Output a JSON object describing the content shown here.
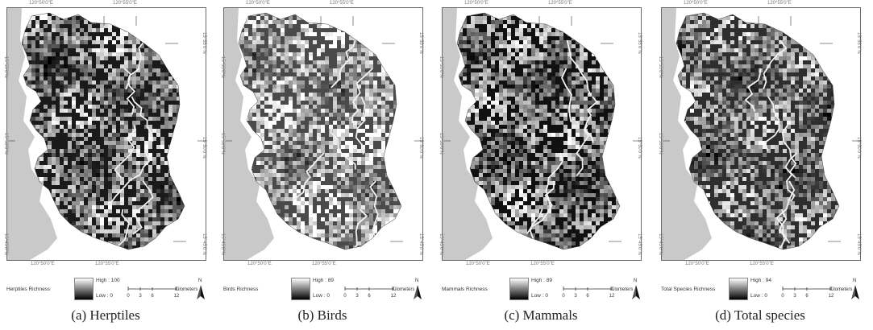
{
  "panels": [
    {
      "caption": "(a) Herptiles",
      "legend_title": "Herptiles Richness",
      "legend_high": "High : 100",
      "legend_low": "Low : 0",
      "variant": 0
    },
    {
      "caption": "(b) Birds",
      "legend_title": "Birds Richness",
      "legend_high": "High : 89",
      "legend_low": "Low : 0",
      "variant": 1
    },
    {
      "caption": "(c) Mammals",
      "legend_title": "Mammals Richness",
      "legend_high": "High : 89",
      "legend_low": "Low : 0",
      "variant": 2
    },
    {
      "caption": "(d) Total species",
      "legend_title": "Total Species Richness",
      "legend_high": "High : 94",
      "legend_low": "Low : 0",
      "variant": 3
    }
  ],
  "coords": {
    "top_left": "120°50'0\"E",
    "top_right": "120°55'0\"E",
    "bottom_left": "120°50'0\"E",
    "bottom_right": "120°55'0\"E",
    "lat_top": "15°55'0\"N",
    "lat_mid": "15°50'0\"N",
    "lat_bot": "15°45'0\"N"
  },
  "scale": {
    "t0": "0",
    "t1": "3",
    "t2": "6",
    "t3": "12",
    "unit": "Kilometers"
  },
  "north_label": "N",
  "colors": {
    "sea": "#c9c9c9",
    "frame": "#6a6a6a",
    "land_dark": "#0d0d0d",
    "land_light": "#f0f0f0"
  }
}
